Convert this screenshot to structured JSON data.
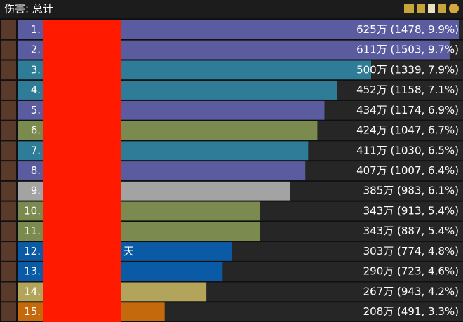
{
  "chart_data": {
    "type": "hbar",
    "title": "伤害: 总计",
    "categories": [
      "1.",
      "2.",
      "3.",
      "4.",
      "5.",
      "6.",
      "7.",
      "8.",
      "9.",
      "10.",
      "11.",
      "12.",
      "13.",
      "14.",
      "15."
    ],
    "names": [
      null,
      null,
      null,
      null,
      null,
      null,
      null,
      null,
      null,
      null,
      null,
      "天",
      null,
      null,
      null
    ],
    "values": [
      625,
      611,
      500,
      452,
      434,
      424,
      411,
      407,
      385,
      343,
      343,
      303,
      290,
      267,
      208
    ],
    "value_labels": [
      "625万 (1478, 9.9%)",
      "611万 (1503, 9.7%)",
      "500万 (1339, 7.9%)",
      "452万 (1158, 7.1%)",
      "434万 (1174, 6.9%)",
      "424万 (1047, 6.7%)",
      "411万 (1030, 6.5%)",
      "407万 (1007, 6.4%)",
      "385万 (983, 6.1%)",
      "343万 (913, 5.4%)",
      "343万 (887, 5.4%)",
      "303万 (774, 4.8%)",
      "290万 (723, 4.6%)",
      "267万 (943, 4.2%)",
      "208万 (491, 3.3%)"
    ],
    "colors": [
      "#5b5b9f",
      "#5b5b9f",
      "#2f7c98",
      "#2f7c98",
      "#5b5b9f",
      "#7b8a4f",
      "#2f7c98",
      "#5b5b9f",
      "#a3a3a3",
      "#7b8a4f",
      "#7b8a4f",
      "#0b5aa6",
      "#0b5aa6",
      "#b3a45c",
      "#c46a0c"
    ]
  }
}
